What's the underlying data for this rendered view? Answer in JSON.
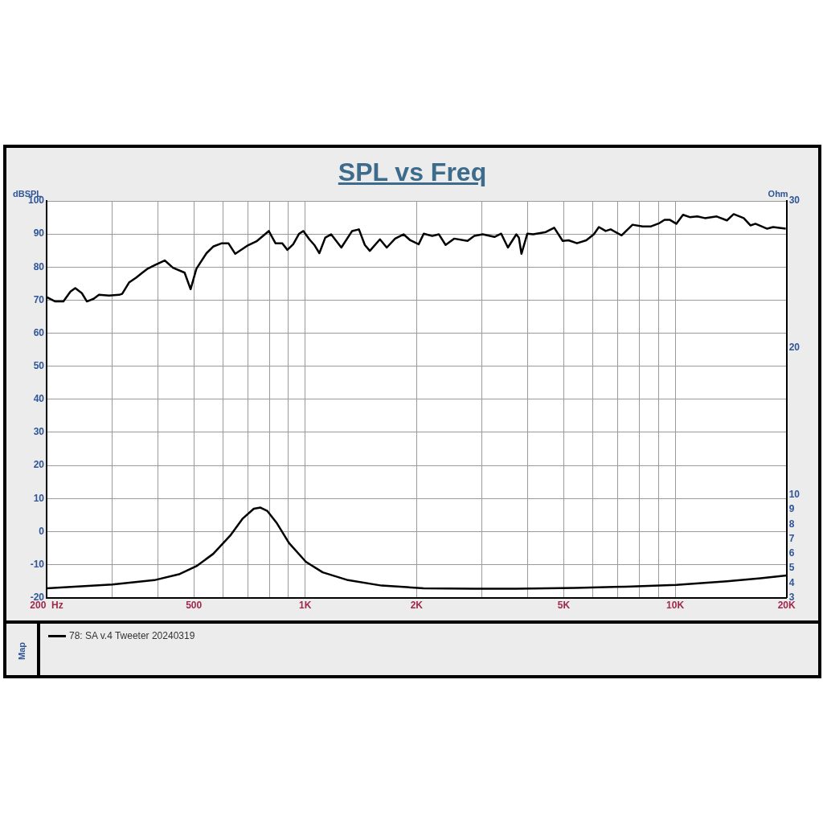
{
  "chart_data": {
    "type": "line",
    "title": "SPL vs Freq",
    "ylabel": "dBSPL",
    "y2label": "Ohm",
    "legend_title": "Map",
    "legend": "bottom",
    "grid": true,
    "marker": "none",
    "line_style": "solid",
    "log": "x",
    "xlim": [
      200,
      20000
    ],
    "xticks": [
      {
        "value": 200,
        "label": "200  Hz"
      },
      {
        "value": 300,
        "label": null
      },
      {
        "value": 400,
        "label": null
      },
      500,
      {
        "value": 600,
        "label": null
      },
      {
        "value": 700,
        "label": null
      },
      {
        "value": 800,
        "label": null
      },
      {
        "value": 900,
        "label": null
      },
      {
        "value": 1000,
        "label": "1K"
      },
      {
        "value": 2000,
        "label": "2K"
      },
      {
        "value": 3000,
        "label": null
      },
      {
        "value": 4000,
        "label": null
      },
      {
        "value": 5000,
        "label": "5K"
      },
      {
        "value": 6000,
        "label": null
      },
      {
        "value": 7000,
        "label": null
      },
      {
        "value": 8000,
        "label": null
      },
      {
        "value": 9000,
        "label": null
      },
      {
        "value": 10000,
        "label": "10K"
      },
      {
        "value": 20000,
        "label": "20K"
      }
    ],
    "ylim": [
      -20,
      100
    ],
    "yticks": [
      -20,
      -10,
      0,
      10,
      20,
      30,
      40,
      50,
      60,
      70,
      80,
      90,
      100
    ],
    "y2lim": [
      3,
      30
    ],
    "y2ticks": [
      3,
      4,
      5,
      6,
      7,
      8,
      9,
      10,
      20,
      30
    ],
    "series": [
      {
        "name": "78: SA v.4 Tweeter 20240319",
        "color": "#000000",
        "x": [
          200,
          211,
          222,
          232,
          239,
          249,
          257,
          268,
          277,
          295,
          314,
          320,
          334,
          349,
          363,
          375,
          391,
          417,
          439,
          472,
          490,
          508,
          541,
          564,
          595,
          620,
          647,
          696,
          741,
          797,
          831,
          867,
          895,
          928,
          963,
          989,
          1026,
          1058,
          1092,
          1133,
          1175,
          1252,
          1339,
          1397,
          1449,
          1495,
          1592,
          1661,
          1750,
          1844,
          1923,
          2026,
          2091,
          2204,
          2298,
          2396,
          2526,
          2746,
          2864,
          3018,
          3247,
          3386,
          3531,
          3721,
          3780,
          3841,
          3985,
          4133,
          4471,
          4710,
          4965,
          5150,
          5427,
          5750,
          6028,
          6220,
          6486,
          6694,
          7163,
          7669,
          8164,
          8607,
          9070,
          9360,
          9658,
          10070,
          10500,
          10950,
          11480,
          12030,
          12950,
          13800,
          14390,
          15320,
          15970,
          16480,
          17730,
          18390,
          19900
        ],
        "values": [
          70.9,
          69.6,
          69.6,
          72.6,
          73.6,
          72.1,
          69.6,
          70.4,
          71.6,
          71.4,
          71.6,
          71.9,
          75.3,
          76.8,
          78.3,
          79.5,
          80.5,
          82.0,
          79.8,
          78.3,
          73.3,
          79.5,
          84.2,
          86.2,
          87.2,
          87.2,
          84.0,
          86.4,
          87.9,
          90.9,
          87.2,
          87.2,
          85.2,
          86.9,
          90.1,
          90.9,
          88.4,
          86.7,
          84.2,
          88.9,
          89.9,
          85.9,
          90.9,
          91.4,
          86.7,
          84.9,
          88.4,
          85.9,
          88.6,
          89.9,
          88.1,
          86.9,
          90.1,
          89.4,
          89.9,
          86.7,
          88.6,
          87.9,
          89.4,
          89.9,
          89.1,
          90.1,
          85.9,
          89.9,
          88.9,
          84.0,
          90.1,
          89.9,
          90.6,
          91.9,
          87.9,
          88.1,
          87.2,
          88.1,
          89.9,
          92.1,
          90.9,
          91.4,
          89.6,
          92.8,
          92.3,
          92.3,
          93.3,
          94.3,
          94.3,
          93.1,
          95.8,
          95.1,
          95.3,
          94.8,
          95.3,
          94.1,
          96.0,
          94.8,
          92.6,
          93.1,
          91.6,
          92.1,
          91.6
        ]
      },
      {
        "color": "#000000",
        "axis": "y2",
        "x": [
          200,
          301,
          391,
          458,
          508,
          564,
          627,
          678,
          726,
          757,
          789,
          836,
          904,
          1004,
          1115,
          1305,
          1609,
          2091,
          2864,
          3721,
          5370,
          7350,
          10070,
          13800,
          17010,
          20000
        ],
        "values": [
          3.64,
          3.89,
          4.19,
          4.61,
          5.14,
          5.98,
          7.22,
          8.39,
          9.05,
          9.13,
          8.91,
          8.11,
          6.72,
          5.44,
          4.72,
          4.19,
          3.82,
          3.64,
          3.61,
          3.61,
          3.66,
          3.75,
          3.87,
          4.11,
          4.32,
          4.51
        ]
      }
    ]
  }
}
